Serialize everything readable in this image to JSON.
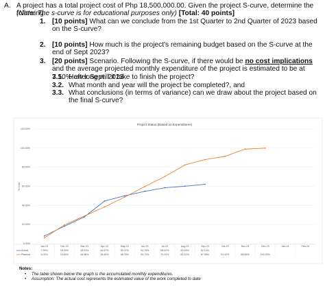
{
  "header": {
    "letter": "A.",
    "intro": "A project has a total project cost of Php 18,500,000.00. Given the project S-curve, determine the following:",
    "note": "(Note: The s-curve is for educational purposes only)",
    "total": "[Total: 40 points]"
  },
  "questions": [
    {
      "number": "1.",
      "points": "[10 points]",
      "text": "What can we conclude from the 1st Quarter to 2nd Quarter of 2023 based on the S-curve?"
    },
    {
      "number": "2.",
      "points": "[10 points]",
      "text": "How much is the project's remaining budget based on the S-curve at the end of Sept 2023?"
    },
    {
      "number": "3.",
      "points": "[20 points]",
      "text_before": "Scenario. Following the S-curve, if there would be",
      "emphasis": "no cost implications",
      "text_after": "and the average projected monthly expenditure of the project is estimated to be at 7.50% after Sept. 2023",
      "sub": [
        {
          "number": "3.1.",
          "text": "How long will it take to finish the project?"
        },
        {
          "number": "3.2.",
          "text": "What month and year will the project be completed?, and"
        },
        {
          "number": "3.3.",
          "text": "What conclusions (in terms of variance) can we draw about the project based on the final S-curve?"
        }
      ]
    }
  ],
  "chart_data": {
    "type": "line",
    "title": "Project Status (Based on Expenditures)",
    "y_label": "% Cost",
    "categories": [
      "Jan-23",
      "Feb-23",
      "Mar-23",
      "Apr-23",
      "May-23",
      "Jun-23",
      "Jul-23",
      "Aug-23",
      "Sep-23",
      "Oct-23",
      "Nov-23",
      "Dec-23",
      "Jan-24",
      "Feb-24"
    ],
    "series": [
      {
        "name": "Actual",
        "color": "#4472c4",
        "values": [
          7.99,
          18.3,
          28.03,
          44.67,
          50.07,
          54.75,
          58.52,
          60.16,
          62.12,
          null,
          null,
          null,
          null,
          null
        ],
        "value_labels": [
          "7.99%",
          "18.30%",
          "28.03%",
          "44.67%",
          "50.07%",
          "54.75%",
          "58.52%",
          "60.16%",
          "62.12%",
          null,
          null,
          null,
          null,
          null
        ]
      },
      {
        "name": "Planned",
        "color": "#ed7d31",
        "values": [
          6.01,
          19.6,
          28.98,
          38.46,
          48.78,
          59.72,
          70.23,
          82.42,
          87.95,
          91.42,
          98.98,
          100,
          null,
          null
        ],
        "value_labels": [
          "6.01%",
          "19.60%",
          "28.98%",
          "38.46%",
          "48.78%",
          "59.72%",
          "70.23%",
          "82.42%",
          "87.95%",
          "91.42%",
          "98.98%",
          "100.00%",
          null,
          null
        ]
      }
    ],
    "ylim": [
      0,
      120
    ],
    "yticks": [
      {
        "value": 0,
        "label": "0.00%"
      },
      {
        "value": 20,
        "label": "20.00%"
      },
      {
        "value": 40,
        "label": "40.00%"
      },
      {
        "value": 60,
        "label": "60.00%"
      },
      {
        "value": 80,
        "label": "80.00%"
      },
      {
        "value": 100,
        "label": "100.00%"
      },
      {
        "value": 120,
        "label": "120.00%"
      }
    ],
    "grid": true
  },
  "notes": {
    "heading": "Notes:",
    "items": [
      "The table shown below the graph is the accumulated monthly expenditures.",
      "Assumption: The actual cost represents the estimated value of the work completed to date"
    ]
  }
}
